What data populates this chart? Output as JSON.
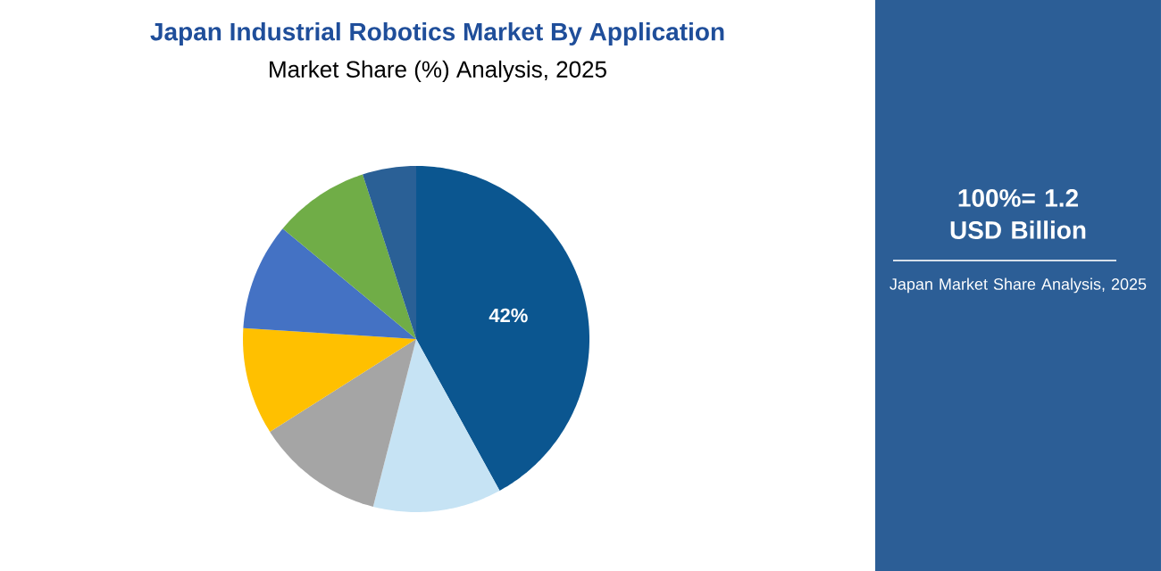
{
  "chart_data": {
    "type": "pie",
    "title": "Japan Industrial Robotics Market By Application",
    "subtitle": "Market Share (%) Analysis, 2025",
    "categories": [
      null,
      null,
      null,
      null,
      null,
      null,
      null
    ],
    "values": [
      42,
      12,
      12,
      10,
      10,
      9,
      5
    ],
    "colors": [
      "#0b5690",
      "#c6e3f4",
      "#a5a5a5",
      "#ffc000",
      "#4472c4",
      "#70ad47",
      "#2a6096"
    ],
    "value_labels": [
      "42%",
      null,
      null,
      null,
      null,
      null,
      null
    ],
    "annotations": [
      "100%= 1.2 USD Billion",
      "Japan Market Share Analysis, 2025"
    ]
  }
}
